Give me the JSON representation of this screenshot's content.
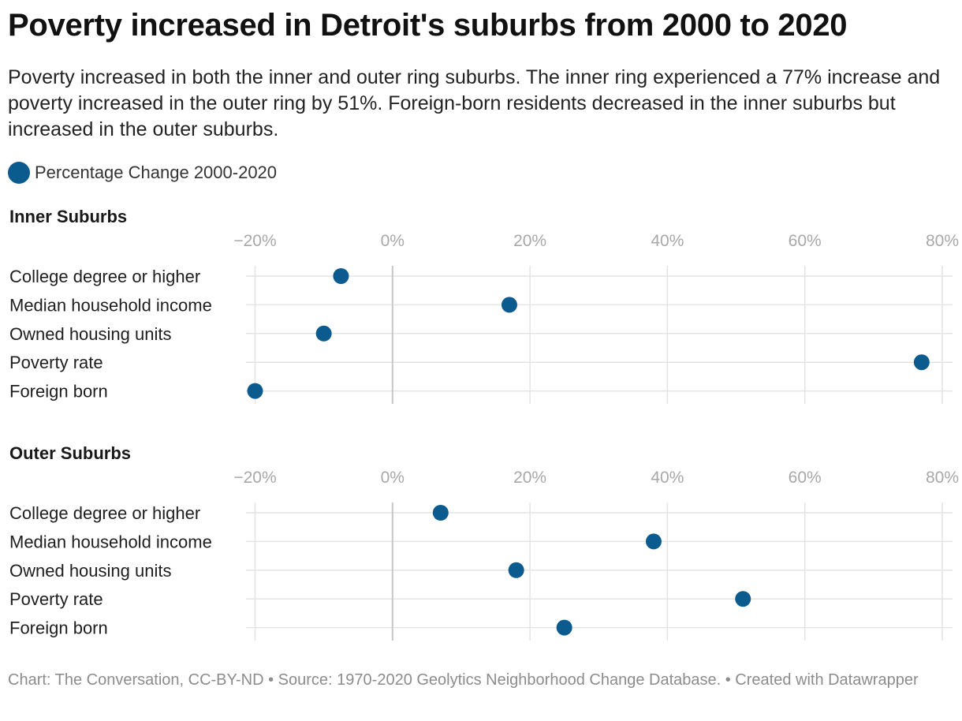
{
  "title": "Poverty increased in Detroit's suburbs from 2000 to 2020",
  "subtitle": "Poverty increased in both the inner and outer ring suburbs. The inner ring experienced a 77% increase and poverty increased in the outer ring by 51%. Foreign-born residents decreased in the inner suburbs but increased in the outer suburbs.",
  "legend": {
    "label": "Percentage Change 2000-2020",
    "color": "#0b5b8e"
  },
  "footer": "Chart: The Conversation, CC-BY-ND • Source: 1970-2020 Geolytics Neighborhood Change Database. • Created with Datawrapper",
  "chart_data": [
    {
      "type": "scatter",
      "title": "Inner Suburbs",
      "categories": [
        "College degree or higher",
        "Median household income",
        "Owned housing units",
        "Poverty rate",
        "Foreign born"
      ],
      "series": [
        {
          "name": "Percentage Change 2000-2020",
          "values": [
            -7.5,
            17,
            -10,
            77,
            -20
          ]
        }
      ],
      "xlim": [
        -20,
        80
      ],
      "xticks": [
        "−20%",
        "0%",
        "20%",
        "40%",
        "60%",
        "80%"
      ],
      "xtick_values": [
        -20,
        0,
        20,
        40,
        60,
        80
      ],
      "grid": true,
      "color": "#0b5b8e"
    },
    {
      "type": "scatter",
      "title": "Outer Suburbs",
      "categories": [
        "College degree or higher",
        "Median household income",
        "Owned housing units",
        "Poverty rate",
        "Foreign born"
      ],
      "series": [
        {
          "name": "Percentage Change 2000-2020",
          "values": [
            7,
            38,
            18,
            51,
            25
          ]
        }
      ],
      "xlim": [
        -20,
        80
      ],
      "xticks": [
        "−20%",
        "0%",
        "20%",
        "40%",
        "60%",
        "80%"
      ],
      "xtick_values": [
        -20,
        0,
        20,
        40,
        60,
        80
      ],
      "grid": true,
      "color": "#0b5b8e"
    }
  ]
}
